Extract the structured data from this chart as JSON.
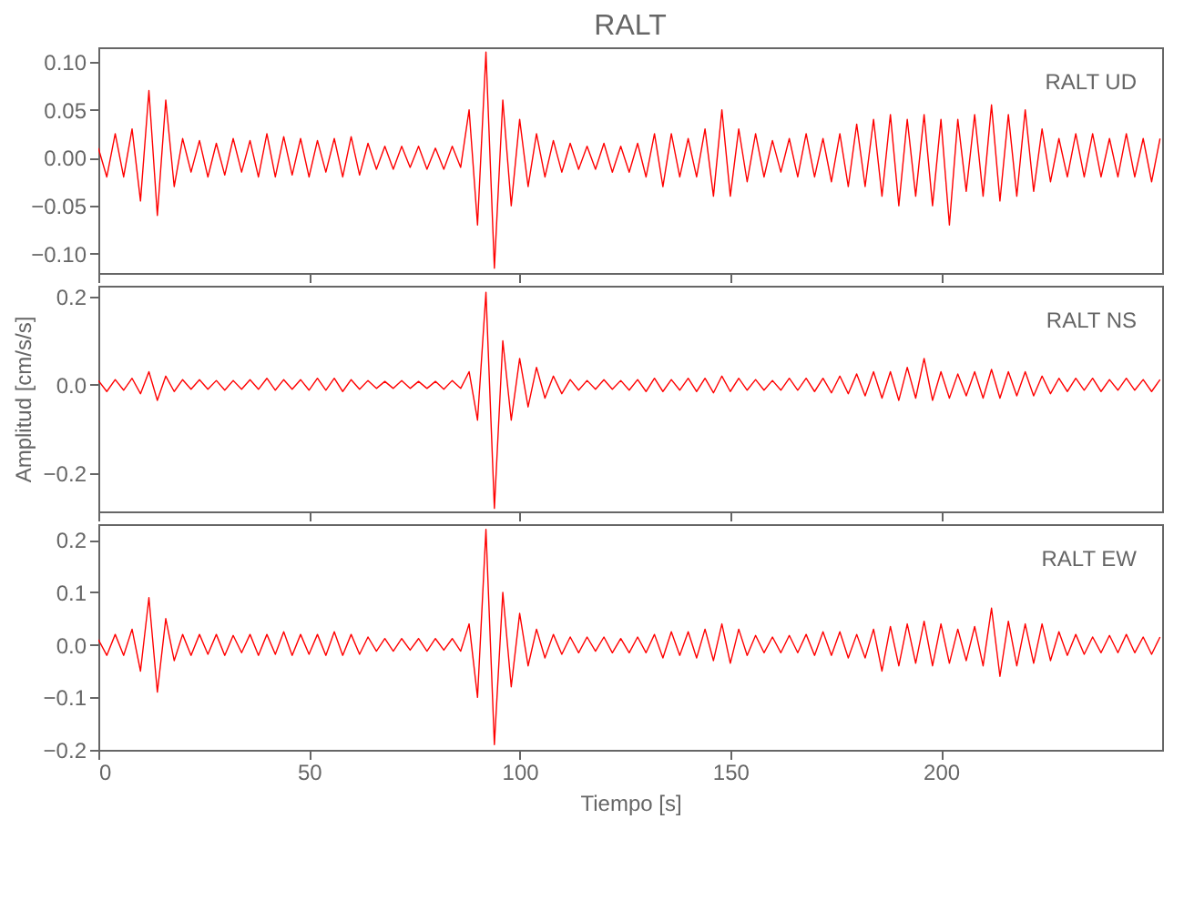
{
  "chart_data": [
    {
      "type": "line",
      "title": "RALT",
      "annotations": [
        "RALT   UD"
      ],
      "xlim": [
        0,
        252.5
      ],
      "ylim": [
        -0.12,
        0.115
      ],
      "tick_labels": "y",
      "xticks": [
        0,
        50,
        100,
        150,
        200
      ],
      "yticks": [
        {
          "value": -0.1,
          "label": "−0.10"
        },
        {
          "value": -0.05,
          "label": "−0.05"
        },
        {
          "value": 0,
          "label": "0.00"
        },
        {
          "value": 0.05,
          "label": "0.05"
        },
        {
          "value": 0.1,
          "label": "0.10"
        }
      ],
      "series": [
        {
          "color": "#ff0000",
          "x": [
            0,
            2,
            4,
            6,
            8,
            10,
            12,
            14,
            16,
            18,
            20,
            22,
            24,
            26,
            28,
            30,
            32,
            34,
            36,
            38,
            40,
            42,
            44,
            46,
            48,
            50,
            52,
            54,
            56,
            58,
            60,
            62,
            64,
            66,
            68,
            70,
            72,
            74,
            76,
            78,
            80,
            82,
            84,
            86,
            88,
            90,
            92,
            94,
            96,
            98,
            100,
            102,
            104,
            106,
            108,
            110,
            112,
            114,
            116,
            118,
            120,
            122,
            124,
            126,
            128,
            130,
            132,
            134,
            136,
            138,
            140,
            142,
            144,
            146,
            148,
            150,
            152,
            154,
            156,
            158,
            160,
            162,
            164,
            166,
            168,
            170,
            172,
            174,
            176,
            178,
            180,
            182,
            184,
            186,
            188,
            190,
            192,
            194,
            196,
            198,
            200,
            202,
            204,
            206,
            208,
            210,
            212,
            214,
            216,
            218,
            220,
            222,
            224,
            226,
            228,
            230,
            232,
            234,
            236,
            238,
            240,
            242,
            244,
            246,
            248,
            250,
            252
          ],
          "values": [
            0.01,
            -0.02,
            0.025,
            -0.02,
            0.03,
            -0.045,
            0.07,
            -0.06,
            0.06,
            -0.03,
            0.02,
            -0.015,
            0.018,
            -0.02,
            0.015,
            -0.018,
            0.02,
            -0.015,
            0.018,
            -0.02,
            0.025,
            -0.02,
            0.022,
            -0.018,
            0.02,
            -0.02,
            0.018,
            -0.015,
            0.02,
            -0.02,
            0.022,
            -0.018,
            0.015,
            -0.012,
            0.012,
            -0.012,
            0.012,
            -0.01,
            0.012,
            -0.012,
            0.01,
            -0.012,
            0.012,
            -0.01,
            0.05,
            -0.07,
            0.11,
            -0.115,
            0.06,
            -0.05,
            0.04,
            -0.03,
            0.025,
            -0.02,
            0.018,
            -0.015,
            0.015,
            -0.012,
            0.012,
            -0.012,
            0.015,
            -0.015,
            0.012,
            -0.015,
            0.015,
            -0.02,
            0.025,
            -0.03,
            0.025,
            -0.02,
            0.02,
            -0.02,
            0.03,
            -0.04,
            0.05,
            -0.04,
            0.03,
            -0.025,
            0.025,
            -0.02,
            0.018,
            -0.015,
            0.02,
            -0.02,
            0.025,
            -0.02,
            0.02,
            -0.025,
            0.025,
            -0.03,
            0.035,
            -0.03,
            0.04,
            -0.04,
            0.045,
            -0.05,
            0.04,
            -0.04,
            0.045,
            -0.05,
            0.04,
            -0.07,
            0.04,
            -0.035,
            0.045,
            -0.04,
            0.055,
            -0.045,
            0.045,
            -0.04,
            0.05,
            -0.035,
            0.03,
            -0.025,
            0.02,
            -0.02,
            0.025,
            -0.02,
            0.025,
            -0.02,
            0.02,
            -0.02,
            0.025,
            -0.02,
            0.02,
            -0.025,
            0.02
          ]
        }
      ]
    },
    {
      "type": "line",
      "ylabel": "Amplitud  [cm/s/s]",
      "annotations": [
        "RALT   NS"
      ],
      "xlim": [
        0,
        252.5
      ],
      "ylim": [
        -0.287,
        0.225
      ],
      "tick_labels": "y",
      "xticks": [
        0,
        50,
        100,
        150,
        200
      ],
      "yticks": [
        {
          "value": -0.2,
          "label": "−0.2"
        },
        {
          "value": 0,
          "label": "0.0"
        },
        {
          "value": 0.2,
          "label": "0.2"
        }
      ],
      "series": [
        {
          "color": "#ff0000",
          "x": [
            0,
            2,
            4,
            6,
            8,
            10,
            12,
            14,
            16,
            18,
            20,
            22,
            24,
            26,
            28,
            30,
            32,
            34,
            36,
            38,
            40,
            42,
            44,
            46,
            48,
            50,
            52,
            54,
            56,
            58,
            60,
            62,
            64,
            66,
            68,
            70,
            72,
            74,
            76,
            78,
            80,
            82,
            84,
            86,
            88,
            90,
            92,
            94,
            96,
            98,
            100,
            102,
            104,
            106,
            108,
            110,
            112,
            114,
            116,
            118,
            120,
            122,
            124,
            126,
            128,
            130,
            132,
            134,
            136,
            138,
            140,
            142,
            144,
            146,
            148,
            150,
            152,
            154,
            156,
            158,
            160,
            162,
            164,
            166,
            168,
            170,
            172,
            174,
            176,
            178,
            180,
            182,
            184,
            186,
            188,
            190,
            192,
            194,
            196,
            198,
            200,
            202,
            204,
            206,
            208,
            210,
            212,
            214,
            216,
            218,
            220,
            222,
            224,
            226,
            228,
            230,
            232,
            234,
            236,
            238,
            240,
            242,
            244,
            246,
            248,
            250,
            252
          ],
          "values": [
            0.01,
            -0.015,
            0.012,
            -0.012,
            0.015,
            -0.02,
            0.03,
            -0.035,
            0.02,
            -0.015,
            0.012,
            -0.01,
            0.012,
            -0.01,
            0.01,
            -0.012,
            0.01,
            -0.01,
            0.012,
            -0.01,
            0.015,
            -0.012,
            0.012,
            -0.01,
            0.012,
            -0.012,
            0.015,
            -0.012,
            0.015,
            -0.015,
            0.012,
            -0.01,
            0.01,
            -0.008,
            0.008,
            -0.008,
            0.01,
            -0.008,
            0.008,
            -0.008,
            0.008,
            -0.01,
            0.01,
            -0.008,
            0.03,
            -0.08,
            0.21,
            -0.28,
            0.1,
            -0.08,
            0.06,
            -0.05,
            0.04,
            -0.03,
            0.02,
            -0.02,
            0.012,
            -0.012,
            0.01,
            -0.01,
            0.012,
            -0.01,
            0.01,
            -0.012,
            0.012,
            -0.015,
            0.015,
            -0.015,
            0.012,
            -0.012,
            0.015,
            -0.015,
            0.015,
            -0.018,
            0.02,
            -0.015,
            0.015,
            -0.012,
            0.012,
            -0.012,
            0.01,
            -0.012,
            0.015,
            -0.012,
            0.015,
            -0.015,
            0.015,
            -0.018,
            0.02,
            -0.02,
            0.025,
            -0.025,
            0.03,
            -0.03,
            0.03,
            -0.035,
            0.04,
            -0.03,
            0.06,
            -0.035,
            0.03,
            -0.03,
            0.025,
            -0.025,
            0.03,
            -0.03,
            0.035,
            -0.03,
            0.03,
            -0.025,
            0.03,
            -0.025,
            0.02,
            -0.02,
            0.015,
            -0.015,
            0.015,
            -0.012,
            0.015,
            -0.015,
            0.012,
            -0.012,
            0.015,
            -0.012,
            0.012,
            -0.015,
            0.012
          ]
        }
      ]
    },
    {
      "type": "line",
      "xlabel": "Tiempo  [s]",
      "annotations": [
        "RALT   EW"
      ],
      "xlim": [
        0,
        252.5
      ],
      "ylim": [
        -0.2,
        0.23
      ],
      "xticks": [
        0,
        50,
        100,
        150,
        200
      ],
      "yticks": [
        {
          "value": -0.2,
          "label": "−0.2"
        },
        {
          "value": -0.1,
          "label": "−0.1"
        },
        {
          "value": 0,
          "label": "0.0"
        },
        {
          "value": 0.1,
          "label": "0.1"
        },
        {
          "value": 0.2,
          "label": "0.2"
        }
      ],
      "series": [
        {
          "color": "#ff0000",
          "x": [
            0,
            2,
            4,
            6,
            8,
            10,
            12,
            14,
            16,
            18,
            20,
            22,
            24,
            26,
            28,
            30,
            32,
            34,
            36,
            38,
            40,
            42,
            44,
            46,
            48,
            50,
            52,
            54,
            56,
            58,
            60,
            62,
            64,
            66,
            68,
            70,
            72,
            74,
            76,
            78,
            80,
            82,
            84,
            86,
            88,
            90,
            92,
            94,
            96,
            98,
            100,
            102,
            104,
            106,
            108,
            110,
            112,
            114,
            116,
            118,
            120,
            122,
            124,
            126,
            128,
            130,
            132,
            134,
            136,
            138,
            140,
            142,
            144,
            146,
            148,
            150,
            152,
            154,
            156,
            158,
            160,
            162,
            164,
            166,
            168,
            170,
            172,
            174,
            176,
            178,
            180,
            182,
            184,
            186,
            188,
            190,
            192,
            194,
            196,
            198,
            200,
            202,
            204,
            206,
            208,
            210,
            212,
            214,
            216,
            218,
            220,
            222,
            224,
            226,
            228,
            230,
            232,
            234,
            236,
            238,
            240,
            242,
            244,
            246,
            248,
            250,
            252
          ],
          "values": [
            0.01,
            -0.02,
            0.02,
            -0.02,
            0.03,
            -0.05,
            0.09,
            -0.09,
            0.05,
            -0.03,
            0.02,
            -0.02,
            0.02,
            -0.018,
            0.02,
            -0.02,
            0.018,
            -0.015,
            0.02,
            -0.02,
            0.02,
            -0.018,
            0.025,
            -0.02,
            0.02,
            -0.018,
            0.02,
            -0.02,
            0.025,
            -0.02,
            0.02,
            -0.018,
            0.015,
            -0.012,
            0.012,
            -0.012,
            0.012,
            -0.01,
            0.012,
            -0.012,
            0.012,
            -0.01,
            0.012,
            -0.012,
            0.04,
            -0.1,
            0.22,
            -0.19,
            0.1,
            -0.08,
            0.06,
            -0.04,
            0.03,
            -0.025,
            0.02,
            -0.018,
            0.015,
            -0.015,
            0.015,
            -0.012,
            0.015,
            -0.015,
            0.012,
            -0.015,
            0.015,
            -0.015,
            0.02,
            -0.025,
            0.025,
            -0.02,
            0.025,
            -0.025,
            0.03,
            -0.03,
            0.04,
            -0.035,
            0.03,
            -0.02,
            0.018,
            -0.015,
            0.015,
            -0.015,
            0.018,
            -0.015,
            0.02,
            -0.02,
            0.025,
            -0.02,
            0.025,
            -0.025,
            0.02,
            -0.025,
            0.03,
            -0.05,
            0.035,
            -0.04,
            0.04,
            -0.035,
            0.045,
            -0.04,
            0.04,
            -0.035,
            0.03,
            -0.03,
            0.035,
            -0.04,
            0.07,
            -0.06,
            0.045,
            -0.04,
            0.04,
            -0.035,
            0.04,
            -0.03,
            0.025,
            -0.02,
            0.02,
            -0.018,
            0.015,
            -0.015,
            0.018,
            -0.015,
            0.02,
            -0.015,
            0.015,
            -0.018,
            0.015
          ]
        }
      ]
    }
  ]
}
